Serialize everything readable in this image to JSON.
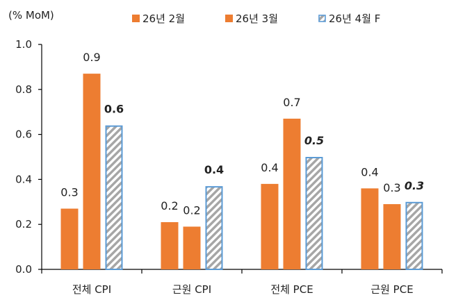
{
  "chart_data": {
    "type": "bar",
    "unit_label": "(% MoM)",
    "categories": [
      "전체 CPI",
      "근원 CPI",
      "전체 PCE",
      "근원 PCE"
    ],
    "series": [
      {
        "name": "26년 2월",
        "values": [
          0.27,
          0.21,
          0.38,
          0.36
        ],
        "labels": [
          "0.3",
          "0.2",
          "0.4",
          "0.4"
        ],
        "color": "#ED7D31",
        "pattern": false,
        "label_style": "normal"
      },
      {
        "name": "26년 3월",
        "values": [
          0.87,
          0.19,
          0.67,
          0.29
        ],
        "labels": [
          "0.9",
          "0.2",
          "0.7",
          "0.3"
        ],
        "color": "#ED7D31",
        "pattern": false,
        "label_style": "normal"
      },
      {
        "name": "26년 4월 F",
        "values": [
          0.64,
          0.37,
          0.5,
          0.3
        ],
        "labels": [
          "0.6",
          "0.4",
          "0.5",
          "0.3"
        ],
        "color": "#5B9BD5",
        "pattern": true,
        "label_style": [
          "bold",
          "bold",
          "bold-italic",
          "bold-italic"
        ]
      }
    ],
    "ylim": [
      0,
      1.0
    ],
    "yticks": [
      "0.0",
      "0.2",
      "0.4",
      "0.6",
      "0.8",
      "1.0"
    ],
    "grid": false,
    "legend_position": "top"
  }
}
